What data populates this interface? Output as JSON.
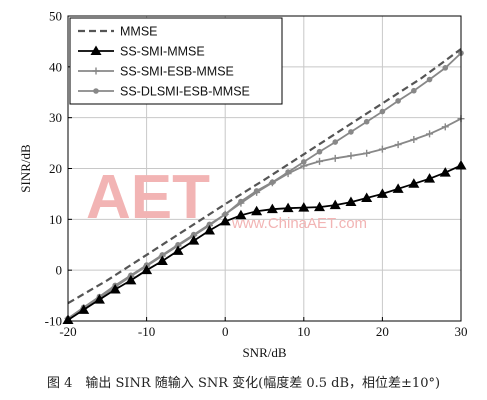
{
  "chart_data": {
    "type": "line",
    "xlabel": "SNR/dB",
    "ylabel": "SINR/dB",
    "xlim": [
      -20,
      30
    ],
    "ylim": [
      -10,
      50
    ],
    "xticks": [
      -20,
      -10,
      0,
      10,
      20,
      30
    ],
    "yticks": [
      -10,
      0,
      10,
      20,
      30,
      40,
      50
    ],
    "grid": true,
    "legend_position": "top-left",
    "series": [
      {
        "name": "MMSE",
        "style": "dashed",
        "color": "#555555",
        "marker": "none",
        "x": [
          -20,
          -15,
          -10,
          -5,
          0,
          5,
          10,
          15,
          20,
          25,
          30
        ],
        "y": [
          -6.5,
          -2.0,
          3.0,
          8.0,
          13.0,
          17.8,
          22.8,
          27.8,
          32.8,
          37.8,
          43.5
        ]
      },
      {
        "name": "SS-SMI-MMSE",
        "style": "solid",
        "color": "#000000",
        "marker": "triangle",
        "x": [
          -20,
          -18,
          -16,
          -14,
          -12,
          -10,
          -8,
          -6,
          -4,
          -2,
          0,
          2,
          4,
          6,
          8,
          10,
          12,
          14,
          16,
          18,
          20,
          22,
          24,
          26,
          28,
          30
        ],
        "y": [
          -9.8,
          -7.8,
          -5.8,
          -3.8,
          -2.0,
          0.0,
          1.8,
          3.8,
          5.8,
          7.8,
          9.6,
          10.8,
          11.6,
          12.0,
          12.2,
          12.3,
          12.4,
          12.8,
          13.4,
          14.2,
          15.0,
          16.0,
          17.0,
          18.0,
          19.2,
          20.6
        ]
      },
      {
        "name": "SS-SMI-ESB-MMSE",
        "style": "solid",
        "color": "#888888",
        "marker": "plus",
        "x": [
          -20,
          -18,
          -16,
          -14,
          -12,
          -10,
          -8,
          -6,
          -4,
          -2,
          0,
          2,
          4,
          6,
          8,
          10,
          12,
          14,
          16,
          18,
          20,
          22,
          24,
          26,
          28,
          30
        ],
        "y": [
          -9.5,
          -7.5,
          -5.5,
          -3.3,
          -1.2,
          0.8,
          2.8,
          4.8,
          6.8,
          8.8,
          11.0,
          13.2,
          15.3,
          17.2,
          19.0,
          20.5,
          21.4,
          22.0,
          22.5,
          23.0,
          23.8,
          24.7,
          25.7,
          26.8,
          28.2,
          29.8
        ]
      },
      {
        "name": "SS-DLSMI-ESB-MMSE",
        "style": "solid",
        "color": "#888888",
        "marker": "circle",
        "x": [
          -20,
          -18,
          -16,
          -14,
          -12,
          -10,
          -8,
          -6,
          -4,
          -2,
          0,
          2,
          4,
          6,
          8,
          10,
          12,
          14,
          16,
          18,
          20,
          22,
          24,
          26,
          28,
          30
        ],
        "y": [
          -9.5,
          -7.3,
          -5.2,
          -3.0,
          -1.0,
          1.0,
          3.0,
          5.0,
          7.0,
          9.0,
          11.0,
          13.5,
          15.6,
          17.3,
          19.3,
          21.3,
          23.3,
          25.2,
          27.2,
          29.2,
          31.2,
          33.3,
          35.3,
          37.5,
          39.8,
          42.7
        ]
      }
    ]
  },
  "watermark": {
    "logo_text": "AET",
    "url_text": "www.ChinaAET.com"
  },
  "caption": "图 4　输出 SINR 随输入 SNR 变化(幅度差 0.5 dB，相位差±10°)"
}
